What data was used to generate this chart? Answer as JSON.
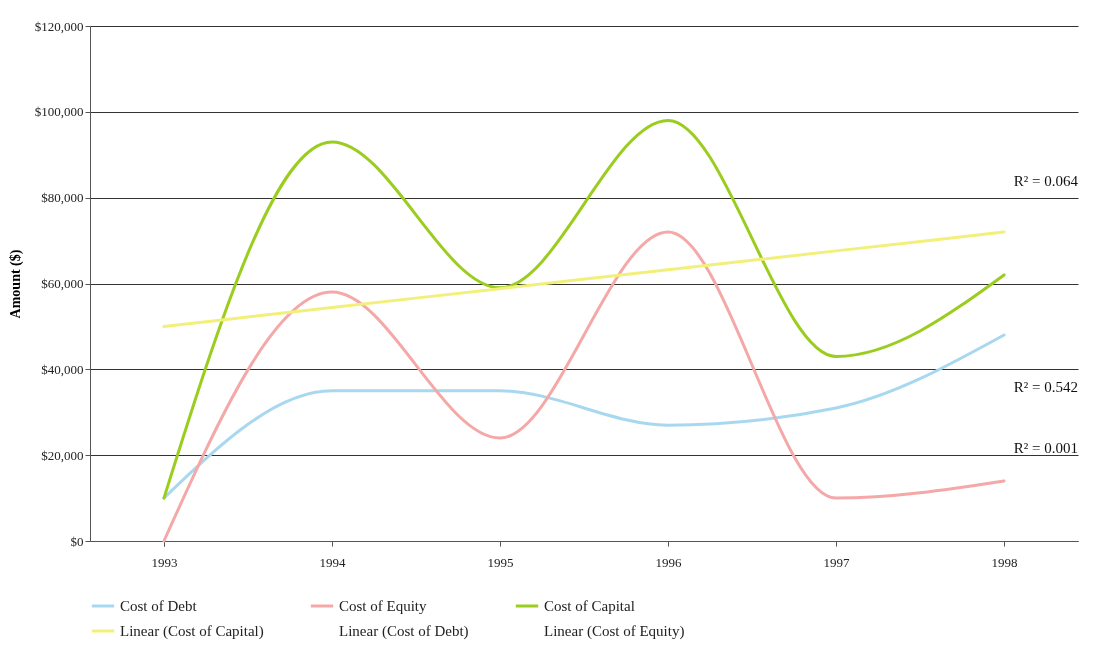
{
  "chart_data": {
    "type": "line",
    "ylabel": "Amount ($)",
    "categories": [
      "1993",
      "1994",
      "1995",
      "1996",
      "1997",
      "1998"
    ],
    "series": [
      {
        "name": "Cost of Debt",
        "color": "#a8d8f0",
        "values": [
          10000,
          35000,
          35000,
          27000,
          31000,
          48000
        ]
      },
      {
        "name": "Cost of Equity",
        "color": "#f4a8a8",
        "values": [
          0,
          58000,
          24000,
          72000,
          10000,
          14000
        ]
      },
      {
        "name": "Cost of Capital",
        "color": "#9acd1e",
        "values": [
          10000,
          93000,
          59000,
          98000,
          43000,
          62000
        ]
      },
      {
        "name": "Linear (Cost of Capital)",
        "color": "#f2f07a",
        "values": [
          50000,
          54400,
          58800,
          63200,
          67600,
          72000
        ]
      },
      {
        "name": "Linear (Cost of Debt)",
        "values": [
          null,
          null,
          null,
          null,
          null,
          null
        ]
      },
      {
        "name": "Linear (Cost of Equity)",
        "values": [
          null,
          null,
          null,
          null,
          null,
          null
        ]
      }
    ],
    "ylim": [
      0,
      120000
    ],
    "yticks": [
      {
        "value": 0,
        "label": "$0"
      },
      {
        "value": 20000,
        "label": "$20,000"
      },
      {
        "value": 40000,
        "label": "$40,000"
      },
      {
        "value": 60000,
        "label": "$60,000"
      },
      {
        "value": 80000,
        "label": "$80,000"
      },
      {
        "value": 100000,
        "label": "$100,000"
      },
      {
        "value": 120000,
        "label": "$120,000"
      }
    ],
    "grid": "y",
    "legend": "bottom",
    "marker": "none",
    "line_style": "solid",
    "annotations": [
      "R² = 0.064",
      "R² = 0.542",
      "R² = 0.001"
    ]
  }
}
